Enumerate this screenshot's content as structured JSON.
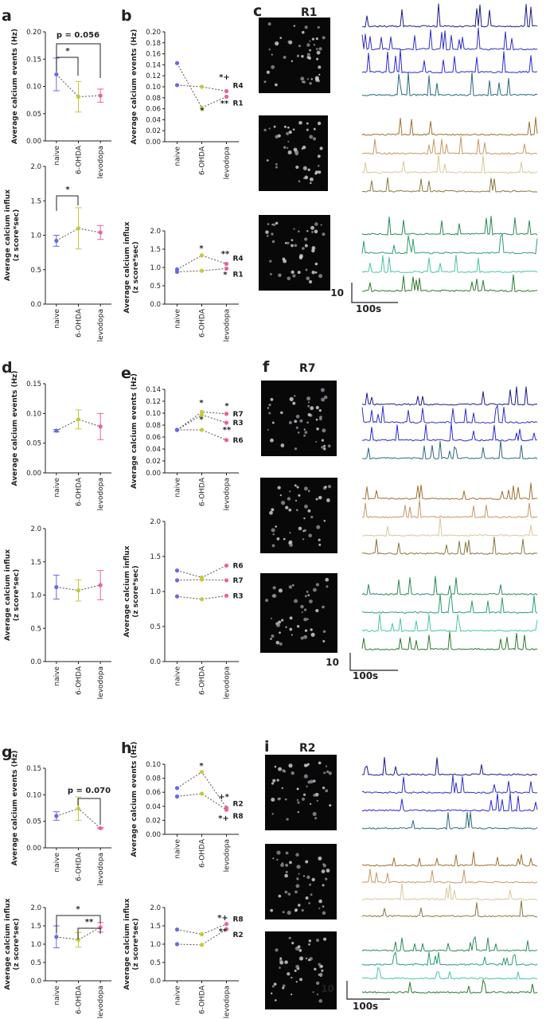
{
  "chart_data": [
    {
      "panel": "a",
      "type": "errorbar",
      "ylabel": [
        "Average calcium events (Hz)"
      ],
      "categories": [
        "naive",
        "6-OHDA",
        "levodopa"
      ],
      "values": [
        0.122,
        0.081,
        0.083
      ],
      "errors": [
        0.03,
        0.028,
        0.012
      ],
      "point_colors": [
        "#6a6ae0",
        "#c8c83c",
        "#e8649a"
      ],
      "line_color": "#555555",
      "ylim": [
        0,
        0.2
      ],
      "yticks": [
        {
          "value": 0,
          "label": "0.00"
        },
        0.05,
        {
          "value": 0.1,
          "label": "0.10"
        },
        0.15,
        {
          "value": 0.2,
          "label": "0.20"
        }
      ],
      "annotations": [
        "p = 0.056",
        "*"
      ]
    },
    {
      "type": "errorbar",
      "ylabel": [
        "Average calcium influx",
        "(z score*sec)"
      ],
      "categories": [
        "naive",
        "6-OHDA",
        "levodopa"
      ],
      "values": [
        0.92,
        1.1,
        1.04
      ],
      "errors": [
        0.08,
        0.3,
        0.1
      ],
      "point_colors": [
        "#6a6ae0",
        "#c8c83c",
        "#e8649a"
      ],
      "line_color": "#555555",
      "ylim": [
        0,
        2
      ],
      "yticks": [
        {
          "value": 0,
          "label": "0.0"
        },
        0.5,
        {
          "value": 1,
          "label": "1.0"
        },
        1.5,
        {
          "value": 2,
          "label": "2.0"
        }
      ],
      "annotations": [
        "*"
      ]
    },
    {
      "panel": "b",
      "type": "line",
      "ylabel": [
        "Average calcium events (Hz)"
      ],
      "categories": [
        "naive",
        "6-OHDA",
        "levodopa"
      ],
      "series": [
        {
          "name": "R4",
          "color": "#555555",
          "values": [
            0.103,
            0.1,
            0.092
          ]
        },
        {
          "name": "R1",
          "color": "#555555",
          "values": [
            0.143,
            0.062,
            0.082
          ]
        }
      ],
      "point_colors": [
        "#6a6ae0",
        "#c8c83c",
        "#e8649a"
      ],
      "ylim": [
        0,
        0.2
      ],
      "yticks": [
        {
          "value": 0,
          "label": "0.00"
        },
        0.02,
        0.04,
        0.06,
        0.08,
        {
          "value": 0.1,
          "label": "0.10"
        },
        0.12,
        0.14,
        0.16,
        0.18,
        {
          "value": 0.2,
          "label": "0.20"
        }
      ],
      "annotations": [
        "*+",
        "**",
        "*"
      ]
    },
    {
      "type": "line",
      "ylabel": [
        "Average calcium influx",
        "(z score*sec)"
      ],
      "categories": [
        "naive",
        "6-OHDA",
        "levodopa"
      ],
      "series": [
        {
          "name": "R4",
          "color": "#555555",
          "values": [
            0.95,
            1.33,
            1.1
          ]
        },
        {
          "name": "R1",
          "color": "#555555",
          "values": [
            0.88,
            0.91,
            0.97
          ]
        }
      ],
      "point_colors": [
        "#6a6ae0",
        "#c8c83c",
        "#e8649a"
      ],
      "ylim": [
        0,
        2
      ],
      "yticks": [
        {
          "value": 0,
          "label": "0.0"
        },
        0.5,
        {
          "value": 1,
          "label": "1.0"
        },
        1.5,
        {
          "value": 2,
          "label": "2.0"
        }
      ],
      "annotations": [
        "*",
        "**",
        "*"
      ]
    },
    {
      "panel": "d",
      "type": "errorbar",
      "ylabel": [
        "Average calcium events (Hz)"
      ],
      "categories": [
        "naive",
        "6-OHDA",
        "levodopa"
      ],
      "values": [
        0.071,
        0.09,
        0.078
      ],
      "errors": [
        0.002,
        0.016,
        0.022
      ],
      "point_colors": [
        "#6a6ae0",
        "#c8c83c",
        "#e8649a"
      ],
      "line_color": "#555555",
      "ylim": [
        0,
        0.15
      ],
      "yticks": [
        {
          "value": 0,
          "label": "0.00"
        },
        0.05,
        {
          "value": 0.1,
          "label": "0.10"
        },
        0.15
      ],
      "annotations": []
    },
    {
      "type": "errorbar",
      "ylabel": [
        "Average calcium influx",
        "(z score*sec)"
      ],
      "categories": [
        "naive",
        "6-OHDA",
        "levodopa"
      ],
      "values": [
        1.12,
        1.07,
        1.15
      ],
      "errors": [
        0.18,
        0.16,
        0.22
      ],
      "point_colors": [
        "#6a6ae0",
        "#c8c83c",
        "#e8649a"
      ],
      "line_color": "#555555",
      "ylim": [
        0,
        2
      ],
      "yticks": [
        {
          "value": 0,
          "label": "0.0"
        },
        0.5,
        {
          "value": 1,
          "label": "1.0"
        },
        1.5,
        {
          "value": 2,
          "label": "2.0"
        }
      ],
      "annotations": []
    },
    {
      "panel": "e",
      "type": "line",
      "ylabel": [
        "Average calcium events (Hz)"
      ],
      "categories": [
        "naive",
        "6-OHDA",
        "levodopa"
      ],
      "series": [
        {
          "name": "R7",
          "color": "#555555",
          "values": [
            0.072,
            0.102,
            0.099
          ]
        },
        {
          "name": "R3",
          "color": "#555555",
          "values": [
            0.072,
            0.097,
            0.084
          ]
        },
        {
          "name": "R6",
          "color": "#555555",
          "values": [
            0.072,
            0.072,
            0.055
          ]
        }
      ],
      "point_colors": [
        "#6a6ae0",
        "#c8c83c",
        "#e8649a"
      ],
      "ylim": [
        0,
        0.14
      ],
      "yticks": [
        {
          "value": 0,
          "label": "0.00"
        },
        0.02,
        0.04,
        0.06,
        0.08,
        {
          "value": 0.1,
          "label": "0.10"
        },
        0.12,
        0.14
      ],
      "annotations": [
        "*",
        "*",
        "*",
        "**"
      ]
    },
    {
      "type": "line",
      "ylabel": [
        "Average calcium influx",
        "(z score*sec)"
      ],
      "categories": [
        "naive",
        "6-OHDA",
        "levodopa"
      ],
      "series": [
        {
          "name": "R6",
          "color": "#555555",
          "values": [
            1.3,
            1.2,
            1.37
          ]
        },
        {
          "name": "R7",
          "color": "#555555",
          "values": [
            1.16,
            1.17,
            1.16
          ]
        },
        {
          "name": "R3",
          "color": "#555555",
          "values": [
            0.93,
            0.89,
            0.94
          ]
        }
      ],
      "point_colors": [
        "#6a6ae0",
        "#c8c83c",
        "#e8649a"
      ],
      "ylim": [
        0,
        2
      ],
      "yticks": [
        {
          "value": 0,
          "label": "0.0"
        },
        0.5,
        {
          "value": 1,
          "label": "1.0"
        },
        1.5,
        {
          "value": 2,
          "label": "2.0"
        }
      ],
      "annotations": []
    },
    {
      "panel": "g",
      "type": "errorbar",
      "ylabel": [
        "Average calcium events (Hz)"
      ],
      "categories": [
        "naive",
        "6-OHDA",
        "levodopa"
      ],
      "values": [
        0.06,
        0.074,
        0.037
      ],
      "errors": [
        0.008,
        0.022,
        0.001
      ],
      "point_colors": [
        "#6a6ae0",
        "#c8c83c",
        "#e8649a"
      ],
      "line_color": "#555555",
      "ylim": [
        0,
        0.15
      ],
      "yticks": [
        {
          "value": 0,
          "label": "0.00"
        },
        0.05,
        {
          "value": 0.1,
          "label": "0.10"
        },
        0.15
      ],
      "annotations": [
        "p = 0.070"
      ]
    },
    {
      "type": "errorbar",
      "ylabel": [
        "Average calcium influx",
        "(z score*sec)"
      ],
      "categories": [
        "naive",
        "6-OHDA",
        "levodopa"
      ],
      "values": [
        1.2,
        1.12,
        1.46
      ],
      "errors": [
        0.3,
        0.2,
        0.13
      ],
      "point_colors": [
        "#6a6ae0",
        "#c8c83c",
        "#e8649a"
      ],
      "line_color": "#555555",
      "ylim": [
        0,
        2
      ],
      "yticks": [
        {
          "value": 0,
          "label": "0.0"
        },
        0.5,
        {
          "value": 1,
          "label": "1.0"
        },
        1.5,
        {
          "value": 2,
          "label": "2.0"
        }
      ],
      "annotations": [
        "*",
        "**"
      ]
    },
    {
      "panel": "h",
      "type": "line",
      "ylabel": [
        "Average calcium events (Hz)"
      ],
      "categories": [
        "naive",
        "6-OHDA",
        "levodopa"
      ],
      "series": [
        {
          "name": "R2",
          "color": "#555555",
          "values": [
            0.066,
            0.089,
            0.038
          ]
        },
        {
          "name": "R8",
          "color": "#555555",
          "values": [
            0.054,
            0.058,
            0.035
          ]
        }
      ],
      "point_colors": [
        "#6a6ae0",
        "#c8c83c",
        "#e8649a"
      ],
      "ylim": [
        0,
        0.1
      ],
      "yticks": [
        {
          "value": 0,
          "label": "0.00"
        },
        0.02,
        0.04,
        0.06,
        0.08,
        {
          "value": 0.1,
          "label": "0.10"
        }
      ],
      "annotations": [
        "*",
        "+*",
        "*+"
      ]
    },
    {
      "type": "line",
      "ylabel": [
        "Average calcium influx",
        "(z score*sec)"
      ],
      "categories": [
        "naive",
        "6-OHDA",
        "levodopa"
      ],
      "series": [
        {
          "name": "R8",
          "color": "#555555",
          "values": [
            1.4,
            1.27,
            1.55
          ]
        },
        {
          "name": "R2",
          "color": "#555555",
          "values": [
            1.0,
            0.98,
            1.41
          ]
        }
      ],
      "point_colors": [
        "#6a6ae0",
        "#c8c83c",
        "#e8649a"
      ],
      "ylim": [
        0,
        2
      ],
      "yticks": [
        {
          "value": 0,
          "label": "0.0"
        },
        0.5,
        {
          "value": 1,
          "label": "1.0"
        },
        1.5,
        {
          "value": 2,
          "label": "2.0"
        }
      ],
      "annotations": [
        "*+",
        "**"
      ]
    }
  ],
  "image_panels": [
    {
      "panel": "c",
      "recording": "R1",
      "scale_y": "10",
      "scale_x": "100s"
    },
    {
      "panel": "f",
      "recording": "R7",
      "scale_y": "10",
      "scale_x": "100s"
    },
    {
      "panel": "i",
      "recording": "R2",
      "scale_y": "10",
      "scale_x": "100s"
    }
  ]
}
